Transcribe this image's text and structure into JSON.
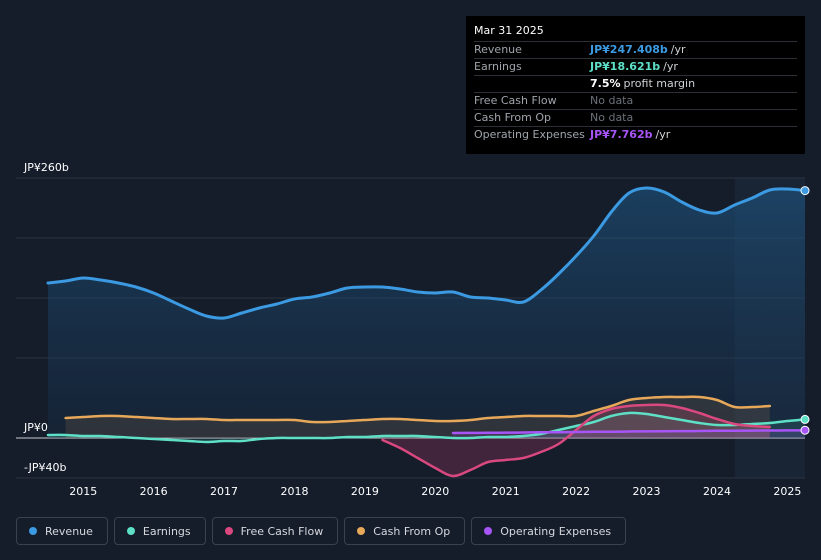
{
  "tooltip": {
    "date": "Mar 31 2025",
    "rows": [
      {
        "label": "Revenue",
        "value": "JP¥247.408b",
        "unit": "/yr",
        "color": "#3b9ae1"
      },
      {
        "label": "Earnings",
        "value": "JP¥18.621b",
        "unit": "/yr",
        "color": "#5ee0c7"
      },
      {
        "label": "",
        "value": "7.5%",
        "unit": "profit margin",
        "color": "#ffffff"
      },
      {
        "label": "Free Cash Flow",
        "value": "No data",
        "unit": "",
        "color": ""
      },
      {
        "label": "Cash From Op",
        "value": "No data",
        "unit": "",
        "color": ""
      },
      {
        "label": "Operating Expenses",
        "value": "JP¥7.762b",
        "unit": "/yr",
        "color": "#a855f7"
      }
    ]
  },
  "legend": [
    {
      "label": "Revenue",
      "color": "#3b9ae1"
    },
    {
      "label": "Earnings",
      "color": "#5ee0c7"
    },
    {
      "label": "Free Cash Flow",
      "color": "#d9487f"
    },
    {
      "label": "Cash From Op",
      "color": "#e8a85a"
    },
    {
      "label": "Operating Expenses",
      "color": "#a855f7"
    }
  ],
  "chart_data": {
    "type": "area",
    "y_tick_labels": [
      "JP¥260b",
      "JP¥0",
      "-JP¥40b"
    ],
    "y_tick_values": [
      260,
      0,
      -40
    ],
    "ylim": [
      -40,
      260
    ],
    "xlim": [
      2014.5,
      2025.25
    ],
    "x_tick_labels": [
      "2015",
      "2016",
      "2017",
      "2018",
      "2019",
      "2020",
      "2021",
      "2022",
      "2023",
      "2024",
      "2025"
    ],
    "x_tick_values": [
      2015,
      2016,
      2017,
      2018,
      2019,
      2020,
      2021,
      2022,
      2023,
      2024,
      2025
    ],
    "highlight_from": 2024.25,
    "series": [
      {
        "name": "Revenue",
        "color": "#3b9ae1",
        "x": [
          2014.5,
          2014.75,
          2015.0,
          2015.25,
          2015.5,
          2015.75,
          2016.0,
          2016.25,
          2016.5,
          2016.75,
          2017.0,
          2017.25,
          2017.5,
          2017.75,
          2018.0,
          2018.25,
          2018.5,
          2018.75,
          2019.0,
          2019.25,
          2019.5,
          2019.75,
          2020.0,
          2020.25,
          2020.5,
          2020.75,
          2021.0,
          2021.25,
          2021.5,
          2021.75,
          2022.0,
          2022.25,
          2022.5,
          2022.75,
          2023.0,
          2023.25,
          2023.5,
          2023.75,
          2024.0,
          2024.25,
          2024.5,
          2024.75,
          2025.0,
          2025.25
        ],
        "values": [
          155,
          157,
          160,
          158,
          155,
          151,
          145,
          137,
          129,
          122,
          120,
          125,
          130,
          134,
          139,
          141,
          145,
          150,
          151,
          151,
          149,
          146,
          145,
          146,
          141,
          140,
          138,
          136,
          148,
          164,
          182,
          202,
          226,
          245,
          250,
          246,
          236,
          228,
          225,
          233,
          240,
          248,
          249,
          247.4
        ]
      },
      {
        "name": "Earnings",
        "color": "#5ee0c7",
        "x": [
          2014.5,
          2014.75,
          2015.0,
          2015.25,
          2015.5,
          2015.75,
          2016.0,
          2016.25,
          2016.5,
          2016.75,
          2017.0,
          2017.25,
          2017.5,
          2017.75,
          2018.0,
          2018.25,
          2018.5,
          2018.75,
          2019.0,
          2019.25,
          2019.5,
          2019.75,
          2020.0,
          2020.25,
          2020.5,
          2020.75,
          2021.0,
          2021.25,
          2021.5,
          2021.75,
          2022.0,
          2022.25,
          2022.5,
          2022.75,
          2023.0,
          2023.25,
          2023.5,
          2023.75,
          2024.0,
          2024.25,
          2024.5,
          2024.75,
          2025.0,
          2025.25
        ],
        "values": [
          3,
          3,
          2,
          2,
          1,
          0,
          -1,
          -2,
          -3,
          -4,
          -3,
          -3,
          -1,
          0,
          0,
          0,
          0,
          1,
          1,
          2,
          2,
          2,
          1,
          0,
          0,
          1,
          1,
          2,
          4,
          8,
          12,
          16,
          22,
          25,
          24,
          21,
          18,
          15,
          13,
          13,
          14,
          15,
          17,
          18.6
        ]
      },
      {
        "name": "Free Cash Flow",
        "color": "#d9487f",
        "x": [
          2019.25,
          2019.5,
          2019.75,
          2020.0,
          2020.25,
          2020.5,
          2020.75,
          2021.0,
          2021.25,
          2021.5,
          2021.75,
          2022.0,
          2022.25,
          2022.5,
          2022.75,
          2023.0,
          2023.25,
          2023.5,
          2023.75,
          2024.0,
          2024.25,
          2024.5,
          2024.75
        ],
        "values": [
          -2,
          -10,
          -20,
          -30,
          -38,
          -32,
          -24,
          -22,
          -20,
          -14,
          -6,
          8,
          22,
          29,
          32,
          33,
          33,
          30,
          25,
          19,
          14,
          12,
          11
        ]
      },
      {
        "name": "Cash From Op",
        "color": "#e8a85a",
        "x": [
          2014.75,
          2015.0,
          2015.25,
          2015.5,
          2015.75,
          2016.0,
          2016.25,
          2016.5,
          2016.75,
          2017.0,
          2017.25,
          2017.5,
          2017.75,
          2018.0,
          2018.25,
          2018.5,
          2018.75,
          2019.0,
          2019.25,
          2019.5,
          2019.75,
          2020.0,
          2020.25,
          2020.5,
          2020.75,
          2021.0,
          2021.25,
          2021.5,
          2021.75,
          2022.0,
          2022.25,
          2022.5,
          2022.75,
          2023.0,
          2023.25,
          2023.5,
          2023.75,
          2024.0,
          2024.25,
          2024.5,
          2024.75
        ],
        "values": [
          20,
          21,
          22,
          22,
          21,
          20,
          19,
          19,
          19,
          18,
          18,
          18,
          18,
          18,
          16,
          16,
          17,
          18,
          19,
          19,
          18,
          17,
          17,
          18,
          20,
          21,
          22,
          22,
          22,
          22,
          27,
          32,
          38,
          40,
          41,
          41,
          41,
          38,
          31,
          31,
          32
        ]
      },
      {
        "name": "Operating Expenses",
        "color": "#a855f7",
        "x": [
          2020.25,
          2020.5,
          2020.75,
          2021.0,
          2021.25,
          2021.5,
          2021.75,
          2022.0,
          2022.25,
          2022.5,
          2022.75,
          2023.0,
          2023.25,
          2023.5,
          2023.75,
          2024.0,
          2024.25,
          2024.5,
          2024.75,
          2025.0,
          2025.25
        ],
        "values": [
          5.0,
          5.1,
          5.2,
          5.4,
          5.5,
          5.7,
          5.8,
          6.0,
          6.2,
          6.3,
          6.5,
          6.6,
          6.8,
          6.9,
          7.0,
          7.2,
          7.3,
          7.4,
          7.5,
          7.6,
          7.762
        ]
      }
    ]
  }
}
